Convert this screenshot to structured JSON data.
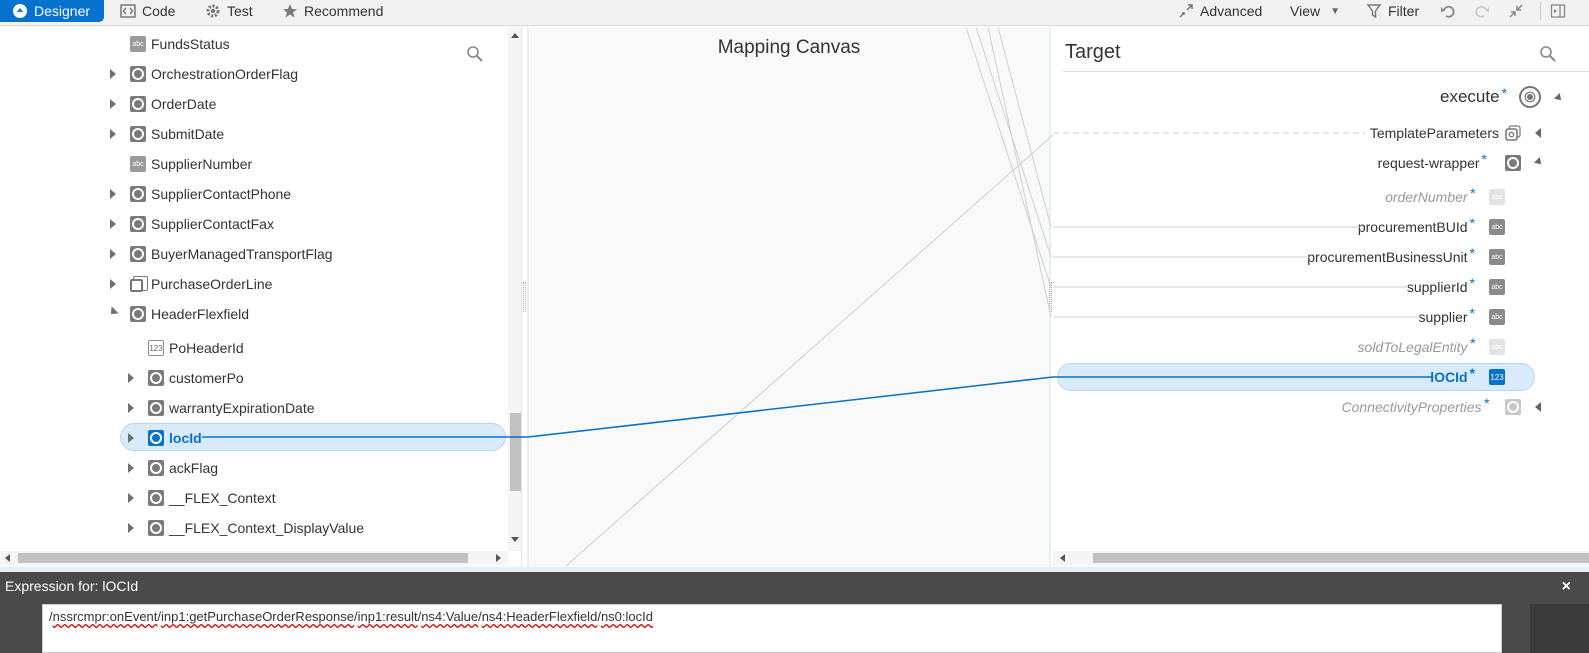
{
  "toolbar": {
    "designer": "Designer",
    "code": "Code",
    "test": "Test",
    "recommend": "Recommend",
    "advanced": "Advanced",
    "view": "View",
    "filter": "Filter",
    "icons": [
      "designer-icon",
      "code-icon",
      "gear-icon",
      "star-icon",
      "advanced-icon",
      "chevron-down-icon",
      "filter-icon",
      "undo-icon",
      "redo-icon",
      "collapse-icon",
      "panel-icon"
    ]
  },
  "source": {
    "items": [
      {
        "label": "FundsStatus",
        "type": "string",
        "expandable": false
      },
      {
        "label": "OrchestrationOrderFlag",
        "type": "element",
        "expandable": true
      },
      {
        "label": "OrderDate",
        "type": "element",
        "expandable": true
      },
      {
        "label": "SubmitDate",
        "type": "element",
        "expandable": true
      },
      {
        "label": "SupplierNumber",
        "type": "string",
        "expandable": false
      },
      {
        "label": "SupplierContactPhone",
        "type": "element",
        "expandable": true
      },
      {
        "label": "SupplierContactFax",
        "type": "element",
        "expandable": true
      },
      {
        "label": "BuyerManagedTransportFlag",
        "type": "element",
        "expandable": true
      },
      {
        "label": "PurchaseOrderLine",
        "type": "sequence",
        "expandable": true
      },
      {
        "label": "HeaderFlexfield",
        "type": "element",
        "expandable": true,
        "expanded": true
      },
      {
        "label": "PoHeaderId",
        "type": "number",
        "expandable": false
      },
      {
        "label": "customerPo",
        "type": "element",
        "expandable": true
      },
      {
        "label": "warrantyExpirationDate",
        "type": "element",
        "expandable": true
      },
      {
        "label": "locId",
        "type": "element",
        "expandable": true,
        "selected": true
      },
      {
        "label": "ackFlag",
        "type": "element",
        "expandable": true
      },
      {
        "label": "__FLEX_Context",
        "type": "element",
        "expandable": true
      },
      {
        "label": "__FLEX_Context_DisplayValue",
        "type": "element",
        "expandable": true
      }
    ],
    "string_icon_text": "abc",
    "number_icon_text": "123"
  },
  "canvas": {
    "title": "Mapping Canvas"
  },
  "target": {
    "title": "Target",
    "required_marker": "*",
    "items": [
      {
        "label": "execute",
        "required": true
      },
      {
        "label": "TemplateParameters",
        "required": false
      },
      {
        "label": "request-wrapper",
        "required": true
      },
      {
        "label": "orderNumber",
        "required": true,
        "muted": true
      },
      {
        "label": "procurementBUId",
        "required": true
      },
      {
        "label": "procurementBusinessUnit",
        "required": true
      },
      {
        "label": "supplierId",
        "required": true
      },
      {
        "label": "supplier",
        "required": true
      },
      {
        "label": "soldToLegalEntity",
        "required": true,
        "muted": true
      },
      {
        "label": "lOCId",
        "required": true,
        "selected": true
      },
      {
        "label": "ConnectivityProperties",
        "required": true,
        "muted": true
      }
    ],
    "string_icon_text": "abc",
    "number_icon_text": "123"
  },
  "expression": {
    "label": "Expression for:",
    "field": "lOCId",
    "close": "×",
    "segments": [
      "/",
      "nssrcmpr:onEvent",
      "/",
      "inp1:getPurchaseOrderResponse",
      "/",
      "inp1:result",
      "/",
      "ns4:Value",
      "/",
      "ns4:HeaderFlexfield",
      "/",
      "ns0:locId"
    ]
  },
  "colors": {
    "accent": "#0572ce",
    "selection_bg": "#d9ebfa",
    "expression_bar": "#4a4a4a"
  }
}
